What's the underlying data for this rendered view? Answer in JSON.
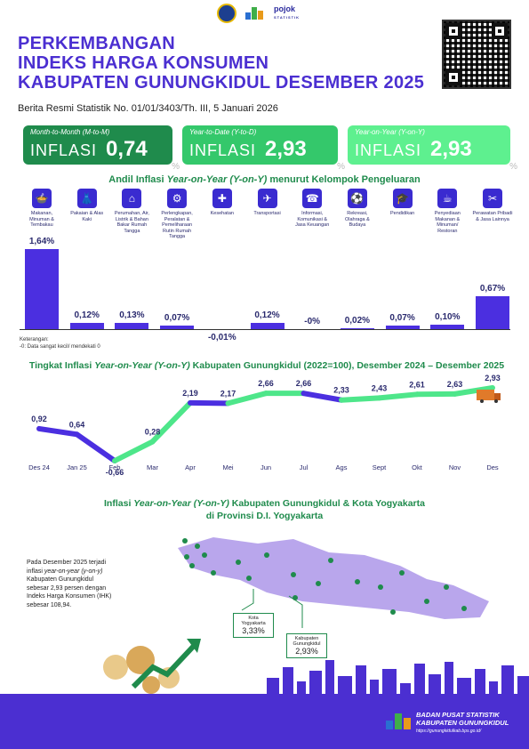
{
  "header": {
    "title_lines": [
      "PERKEMBANGAN",
      "INDEKS HARGA KONSUMEN",
      "KABUPATEN GUNUNGKIDUL DESEMBER 2025"
    ],
    "release_line": "Berita Resmi Statistik No. 01/01/3403/Th. III, 5 Januari 2026",
    "logo_text": "pojok",
    "logo_subtext": "STATISTIK"
  },
  "cards": [
    {
      "label": "Month-to-Month (M-to-M)",
      "word": "INFLASI",
      "value": "0,74",
      "unit": "%"
    },
    {
      "label": "Year-to-Date (Y-to-D)",
      "word": "INFLASI",
      "value": "2,93",
      "unit": "%"
    },
    {
      "label": "Year-on-Year (Y-on-Y)",
      "word": "INFLASI",
      "value": "2,93",
      "unit": "%"
    }
  ],
  "andil": {
    "title_a": "Andil Inflasi ",
    "title_b": "Year-on-Year (Y-on-Y)",
    "title_c": " menurut Kelompok Pengeluaran",
    "note_1": "Keterangan:",
    "note_2": "-0: Data sangat kecil/ mendekati 0"
  },
  "chart_data": [
    {
      "type": "bar",
      "categories": [
        "Makanan, Minuman & Tembakau",
        "Pakaian & Alas Kaki",
        "Perumahan, Air, Listrik & Bahan Bakar Rumah Tangga",
        "Perlengkapan, Peralatan & Pemeliharaan Rutin Rumah Tangga",
        "Kesehatan",
        "Transportasi",
        "Informasi, Komunikasi & Jasa Keuangan",
        "Rekreasi, Olahraga & Budaya",
        "Pendidikan",
        "Penyediaan Makanan & Minuman/ Restoran",
        "Perawatan Pribadi & Jasa Lainnya"
      ],
      "values": [
        1.64,
        0.12,
        0.13,
        0.07,
        -0.01,
        0.12,
        0,
        0.02,
        0.07,
        0.1,
        0.67
      ],
      "value_labels": [
        "1,64%",
        "0,12%",
        "0,13%",
        "0,07%",
        "-0,01%",
        "0,12%",
        "-0%",
        "0,02%",
        "0,07%",
        "0,10%",
        "0,67%"
      ],
      "icons": [
        "food-icon",
        "clothing-icon",
        "house-icon",
        "household-icon",
        "health-icon",
        "transport-icon",
        "phone-icon",
        "recreation-icon",
        "education-icon",
        "restaurant-icon",
        "personal-care-icon"
      ]
    },
    {
      "type": "line",
      "title_a": "Tingkat Inflasi ",
      "title_b": "Year-on-Year (Y-on-Y)",
      "title_c": " Kabupaten Gunungkidul (2022=100), Desember 2024 – Desember 2025",
      "categories": [
        "Des 24",
        "Jan 25",
        "Feb",
        "Mar",
        "Apr",
        "Mei",
        "Jun",
        "Jul",
        "Ags",
        "Sept",
        "Okt",
        "Nov",
        "Des"
      ],
      "values": [
        0.92,
        0.64,
        -0.66,
        0.28,
        2.19,
        2.17,
        2.66,
        2.66,
        2.33,
        2.43,
        2.61,
        2.63,
        2.93
      ],
      "value_labels": [
        "0,92",
        "0,64",
        "-0,66",
        "0,28",
        "2,19",
        "2,17",
        "2,66",
        "2,66",
        "2,33",
        "2,43",
        "2,61",
        "2,63",
        "2,93"
      ],
      "colors": {
        "up": "#4ee68a",
        "down": "#4b2fe0"
      }
    }
  ],
  "map": {
    "title_a": "Inflasi ",
    "title_b": "Year-on-Year (Y-on-Y)",
    "title_c": " Kabupaten Gunungkidul & Kota Yogyakarta",
    "title_d": "di Provinsi D.I. Yogyakarta",
    "note_parts": [
      "Pada Desember 2025 terjadi inflasi ",
      "year-on-year (y-on-y)",
      " Kabupaten Gunungkidul sebesar 2,93 persen dengan Indeks Harga Konsumen (IHK) sebesar 108,94."
    ],
    "callouts": [
      {
        "name": "Kota Yogyakarta",
        "value": "3,33%"
      },
      {
        "name": "Kabupaten Gunungkidul",
        "value": "2,93%"
      }
    ]
  },
  "footer": {
    "org_line_1": "BADAN PUSAT STATISTIK",
    "org_line_2": "KABUPATEN GUNUNGKIDUL",
    "url": "https://gunungkidulkab.bps.go.id/"
  },
  "colors": {
    "purple": "#4b2fd1",
    "green": "#1f8b4c",
    "light_green": "#4ee68a"
  }
}
